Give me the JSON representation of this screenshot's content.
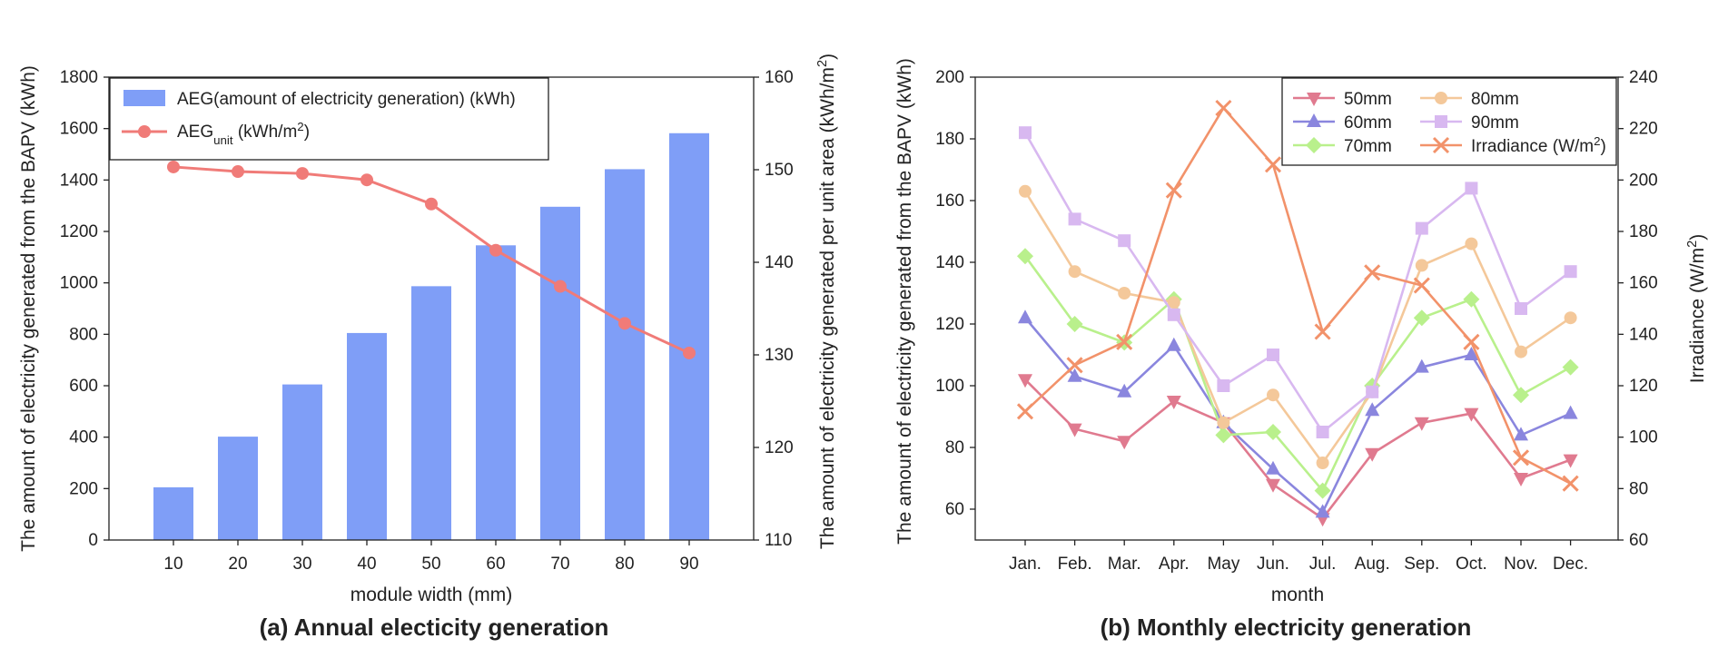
{
  "chart_data": [
    {
      "type": "bar",
      "caption": "(a) Annual electicity generation",
      "xlabel": "module width (mm)",
      "ylabel": "The amount of electricity generated from the BAPV (kWh)",
      "ylabel_right": "The amount of electricity generated per unit area (kWh/m2)",
      "ylabel_right_parts": [
        "The amount of electricity generated per unit area (kWh/m",
        "2",
        ")"
      ],
      "categories": [
        "10",
        "20",
        "30",
        "40",
        "50",
        "60",
        "70",
        "80",
        "90"
      ],
      "ylim": [
        0,
        1800
      ],
      "yticks": [
        "0",
        "200",
        "400",
        "600",
        "800",
        "1000",
        "1200",
        "1400",
        "1600",
        "1800"
      ],
      "ylim_right": [
        110,
        160
      ],
      "yticks_right": [
        "110",
        "120",
        "130",
        "140",
        "150",
        "160"
      ],
      "legend_position": "top-left",
      "series": [
        {
          "name": "AEG(amount of electricity generation) (kWh)",
          "kind": "bar",
          "axis": "left",
          "color": "#7f9ef7",
          "values": [
            205,
            402,
            605,
            805,
            987,
            1146,
            1296,
            1442,
            1582
          ]
        },
        {
          "name": "AEGunit (kWh/m2)",
          "name_parts": [
            "AEG",
            "unit",
            " (kWh/m",
            "2",
            ")"
          ],
          "kind": "line",
          "axis": "right",
          "color": "#f07b78",
          "values": [
            150.3,
            149.8,
            149.6,
            148.9,
            146.3,
            141.3,
            137.4,
            133.4,
            130.2
          ]
        }
      ]
    },
    {
      "type": "line",
      "caption": "(b) Monthly electricity generation",
      "xlabel": "month",
      "ylabel": "The amount of electricity generated from the BAPV (kWh)",
      "ylabel_right": "Irradiance (W/m2)",
      "ylabel_right_parts": [
        "Irradiance (W/m",
        "2",
        ")"
      ],
      "categories": [
        "Jan.",
        "Feb.",
        "Mar.",
        "Apr.",
        "May",
        "Jun.",
        "Jul.",
        "Aug.",
        "Sep.",
        "Oct.",
        "Nov.",
        "Dec."
      ],
      "ylim": [
        50,
        200
      ],
      "yticks": [
        "60",
        "80",
        "100",
        "120",
        "140",
        "160",
        "180",
        "200"
      ],
      "ylim_right": [
        60,
        240
      ],
      "yticks_right": [
        "60",
        "80",
        "100",
        "120",
        "140",
        "160",
        "180",
        "200",
        "220",
        "240"
      ],
      "legend_position": "top-right",
      "series": [
        {
          "name": "50mm",
          "axis": "left",
          "marker": "triangle-down",
          "color": "#e07a8f",
          "values": [
            102,
            86,
            82,
            95,
            88,
            68,
            57,
            78,
            88,
            91,
            70,
            76
          ]
        },
        {
          "name": "60mm",
          "axis": "left",
          "marker": "triangle-up",
          "color": "#8a86de",
          "values": [
            122,
            103,
            98,
            113,
            88,
            73,
            59,
            92,
            106,
            110,
            84,
            91
          ]
        },
        {
          "name": "70mm",
          "axis": "left",
          "marker": "diamond",
          "color": "#b9f08c",
          "values": [
            142,
            120,
            114,
            128,
            84,
            85,
            66,
            100,
            122,
            128,
            97,
            106
          ]
        },
        {
          "name": "80mm",
          "axis": "left",
          "marker": "circle",
          "color": "#f4c89a",
          "values": [
            163,
            137,
            130,
            127,
            88,
            97,
            75,
            98,
            139,
            146,
            111,
            122
          ]
        },
        {
          "name": "90mm",
          "axis": "left",
          "marker": "square",
          "color": "#d8b8f0",
          "values": [
            182,
            154,
            147,
            123,
            100,
            110,
            85,
            98,
            151,
            164,
            125,
            137
          ]
        },
        {
          "name": "Irradiance (W/m2)",
          "name_parts": [
            "Irradiance (W/m",
            "2",
            ")"
          ],
          "axis": "right",
          "marker": "x",
          "color": "#f2926a",
          "values": [
            110,
            128,
            137,
            196,
            228,
            206,
            141,
            164,
            159,
            137,
            92,
            82
          ]
        }
      ]
    }
  ]
}
